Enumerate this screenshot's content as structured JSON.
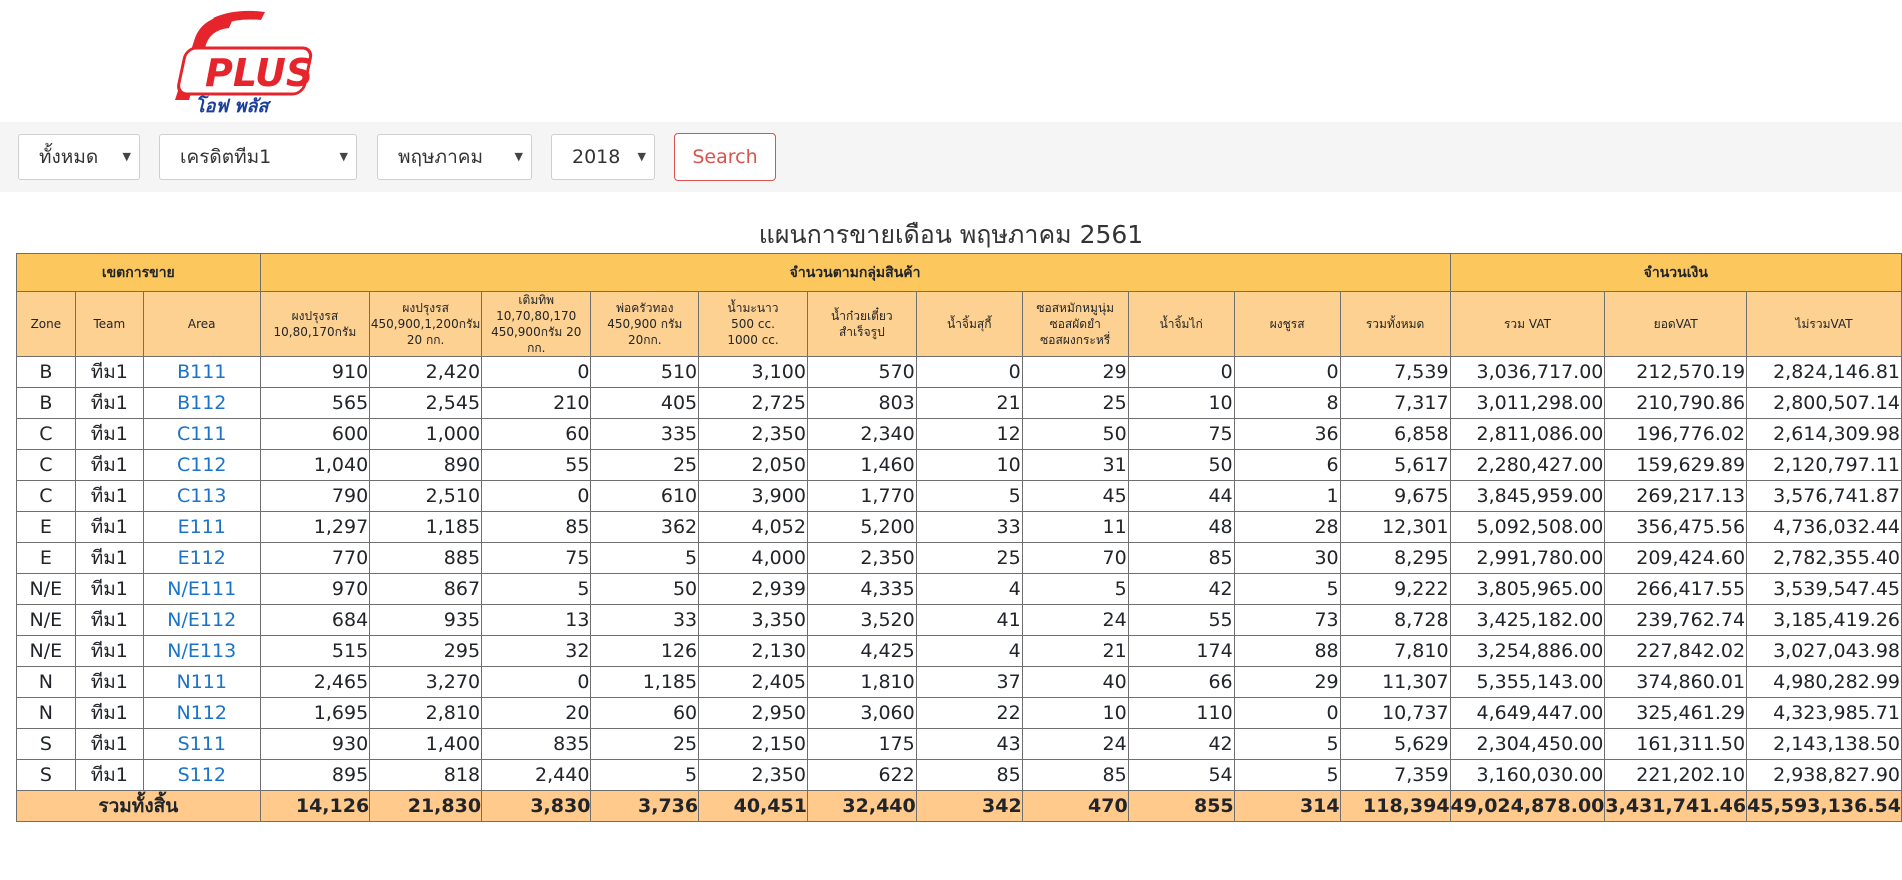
{
  "brand": {
    "logo_text": "PLUS",
    "logo_sub": "โอฟ พลัส"
  },
  "filters": {
    "zone": "ทั้งหมด",
    "team": "เครดิตทีม1",
    "month": "พฤษภาคม",
    "year": "2018",
    "search_label": "Search"
  },
  "report_title": "แผนการขายเดือน พฤษภาคม 2561",
  "group_headers": {
    "zone_group": "เขตการขาย",
    "product_group": "จำนวนตามกลุ่มสินค้า",
    "amount_group": "จำนวนเงิน"
  },
  "columns": {
    "zone": "Zone",
    "team": "Team",
    "area": "Area",
    "p1": [
      "ผงปรุงรส",
      "10,80,170กรัม"
    ],
    "p2": [
      "ผงปรุงรส",
      "450,900,1,200กรัม",
      "20 กก."
    ],
    "p3": [
      "เติมทิพ",
      "10,70,80,170",
      "450,900กรัม 20 กก."
    ],
    "p4": [
      "พ่อครัวทอง",
      "450,900 กรัม",
      "20กก."
    ],
    "p5": [
      "น้ำมะนาว",
      "500 cc.",
      "1000 cc."
    ],
    "p6": [
      "น้ำก๋วยเตี๋ยว",
      "สำเร็จรูป"
    ],
    "p7": [
      "น้ำจิ้มสุกี้"
    ],
    "p8": [
      "ซอสหมักหมูนุ่ม",
      "ซอสผัดยำ",
      "ซอสผงกระหรี่"
    ],
    "p9": [
      "น้ำจิ้มไก่"
    ],
    "p10": [
      "ผงชูรส"
    ],
    "total_qty": [
      "รวมทั้งหมด"
    ],
    "vat_incl": "รวม VAT",
    "vat": "ยอดVAT",
    "vat_excl": "ไม่รวมVAT"
  },
  "rows": [
    {
      "zone": "B",
      "team": "ทีม1",
      "area": "B111",
      "q": [
        "910",
        "2,420",
        "0",
        "510",
        "3,100",
        "570",
        "0",
        "29",
        "0",
        "0",
        "7,539"
      ],
      "m": [
        "3,036,717.00",
        "212,570.19",
        "2,824,146.81"
      ]
    },
    {
      "zone": "B",
      "team": "ทีม1",
      "area": "B112",
      "q": [
        "565",
        "2,545",
        "210",
        "405",
        "2,725",
        "803",
        "21",
        "25",
        "10",
        "8",
        "7,317"
      ],
      "m": [
        "3,011,298.00",
        "210,790.86",
        "2,800,507.14"
      ]
    },
    {
      "zone": "C",
      "team": "ทีม1",
      "area": "C111",
      "q": [
        "600",
        "1,000",
        "60",
        "335",
        "2,350",
        "2,340",
        "12",
        "50",
        "75",
        "36",
        "6,858"
      ],
      "m": [
        "2,811,086.00",
        "196,776.02",
        "2,614,309.98"
      ]
    },
    {
      "zone": "C",
      "team": "ทีม1",
      "area": "C112",
      "q": [
        "1,040",
        "890",
        "55",
        "25",
        "2,050",
        "1,460",
        "10",
        "31",
        "50",
        "6",
        "5,617"
      ],
      "m": [
        "2,280,427.00",
        "159,629.89",
        "2,120,797.11"
      ]
    },
    {
      "zone": "C",
      "team": "ทีม1",
      "area": "C113",
      "q": [
        "790",
        "2,510",
        "0",
        "610",
        "3,900",
        "1,770",
        "5",
        "45",
        "44",
        "1",
        "9,675"
      ],
      "m": [
        "3,845,959.00",
        "269,217.13",
        "3,576,741.87"
      ]
    },
    {
      "zone": "E",
      "team": "ทีม1",
      "area": "E111",
      "q": [
        "1,297",
        "1,185",
        "85",
        "362",
        "4,052",
        "5,200",
        "33",
        "11",
        "48",
        "28",
        "12,301"
      ],
      "m": [
        "5,092,508.00",
        "356,475.56",
        "4,736,032.44"
      ]
    },
    {
      "zone": "E",
      "team": "ทีม1",
      "area": "E112",
      "q": [
        "770",
        "885",
        "75",
        "5",
        "4,000",
        "2,350",
        "25",
        "70",
        "85",
        "30",
        "8,295"
      ],
      "m": [
        "2,991,780.00",
        "209,424.60",
        "2,782,355.40"
      ]
    },
    {
      "zone": "N/E",
      "team": "ทีม1",
      "area": "N/E111",
      "q": [
        "970",
        "867",
        "5",
        "50",
        "2,939",
        "4,335",
        "4",
        "5",
        "42",
        "5",
        "9,222"
      ],
      "m": [
        "3,805,965.00",
        "266,417.55",
        "3,539,547.45"
      ]
    },
    {
      "zone": "N/E",
      "team": "ทีม1",
      "area": "N/E112",
      "q": [
        "684",
        "935",
        "13",
        "33",
        "3,350",
        "3,520",
        "41",
        "24",
        "55",
        "73",
        "8,728"
      ],
      "m": [
        "3,425,182.00",
        "239,762.74",
        "3,185,419.26"
      ]
    },
    {
      "zone": "N/E",
      "team": "ทีม1",
      "area": "N/E113",
      "q": [
        "515",
        "295",
        "32",
        "126",
        "2,130",
        "4,425",
        "4",
        "21",
        "174",
        "88",
        "7,810"
      ],
      "m": [
        "3,254,886.00",
        "227,842.02",
        "3,027,043.98"
      ]
    },
    {
      "zone": "N",
      "team": "ทีม1",
      "area": "N111",
      "q": [
        "2,465",
        "3,270",
        "0",
        "1,185",
        "2,405",
        "1,810",
        "37",
        "40",
        "66",
        "29",
        "11,307"
      ],
      "m": [
        "5,355,143.00",
        "374,860.01",
        "4,980,282.99"
      ]
    },
    {
      "zone": "N",
      "team": "ทีม1",
      "area": "N112",
      "q": [
        "1,695",
        "2,810",
        "20",
        "60",
        "2,950",
        "3,060",
        "22",
        "10",
        "110",
        "0",
        "10,737"
      ],
      "m": [
        "4,649,447.00",
        "325,461.29",
        "4,323,985.71"
      ]
    },
    {
      "zone": "S",
      "team": "ทีม1",
      "area": "S111",
      "q": [
        "930",
        "1,400",
        "835",
        "25",
        "2,150",
        "175",
        "43",
        "24",
        "42",
        "5",
        "5,629"
      ],
      "m": [
        "2,304,450.00",
        "161,311.50",
        "2,143,138.50"
      ]
    },
    {
      "zone": "S",
      "team": "ทีม1",
      "area": "S112",
      "q": [
        "895",
        "818",
        "2,440",
        "5",
        "2,350",
        "622",
        "85",
        "85",
        "54",
        "5",
        "7,359"
      ],
      "m": [
        "3,160,030.00",
        "221,202.10",
        "2,938,827.90"
      ]
    }
  ],
  "totals": {
    "label": "รวมทั้งสิ้น",
    "q": [
      "14,126",
      "21,830",
      "3,830",
      "3,736",
      "40,451",
      "32,440",
      "342",
      "470",
      "855",
      "314",
      "118,394"
    ],
    "m": [
      "49,024,878.00",
      "3,431,741.46",
      "45,593,136.54"
    ]
  }
}
